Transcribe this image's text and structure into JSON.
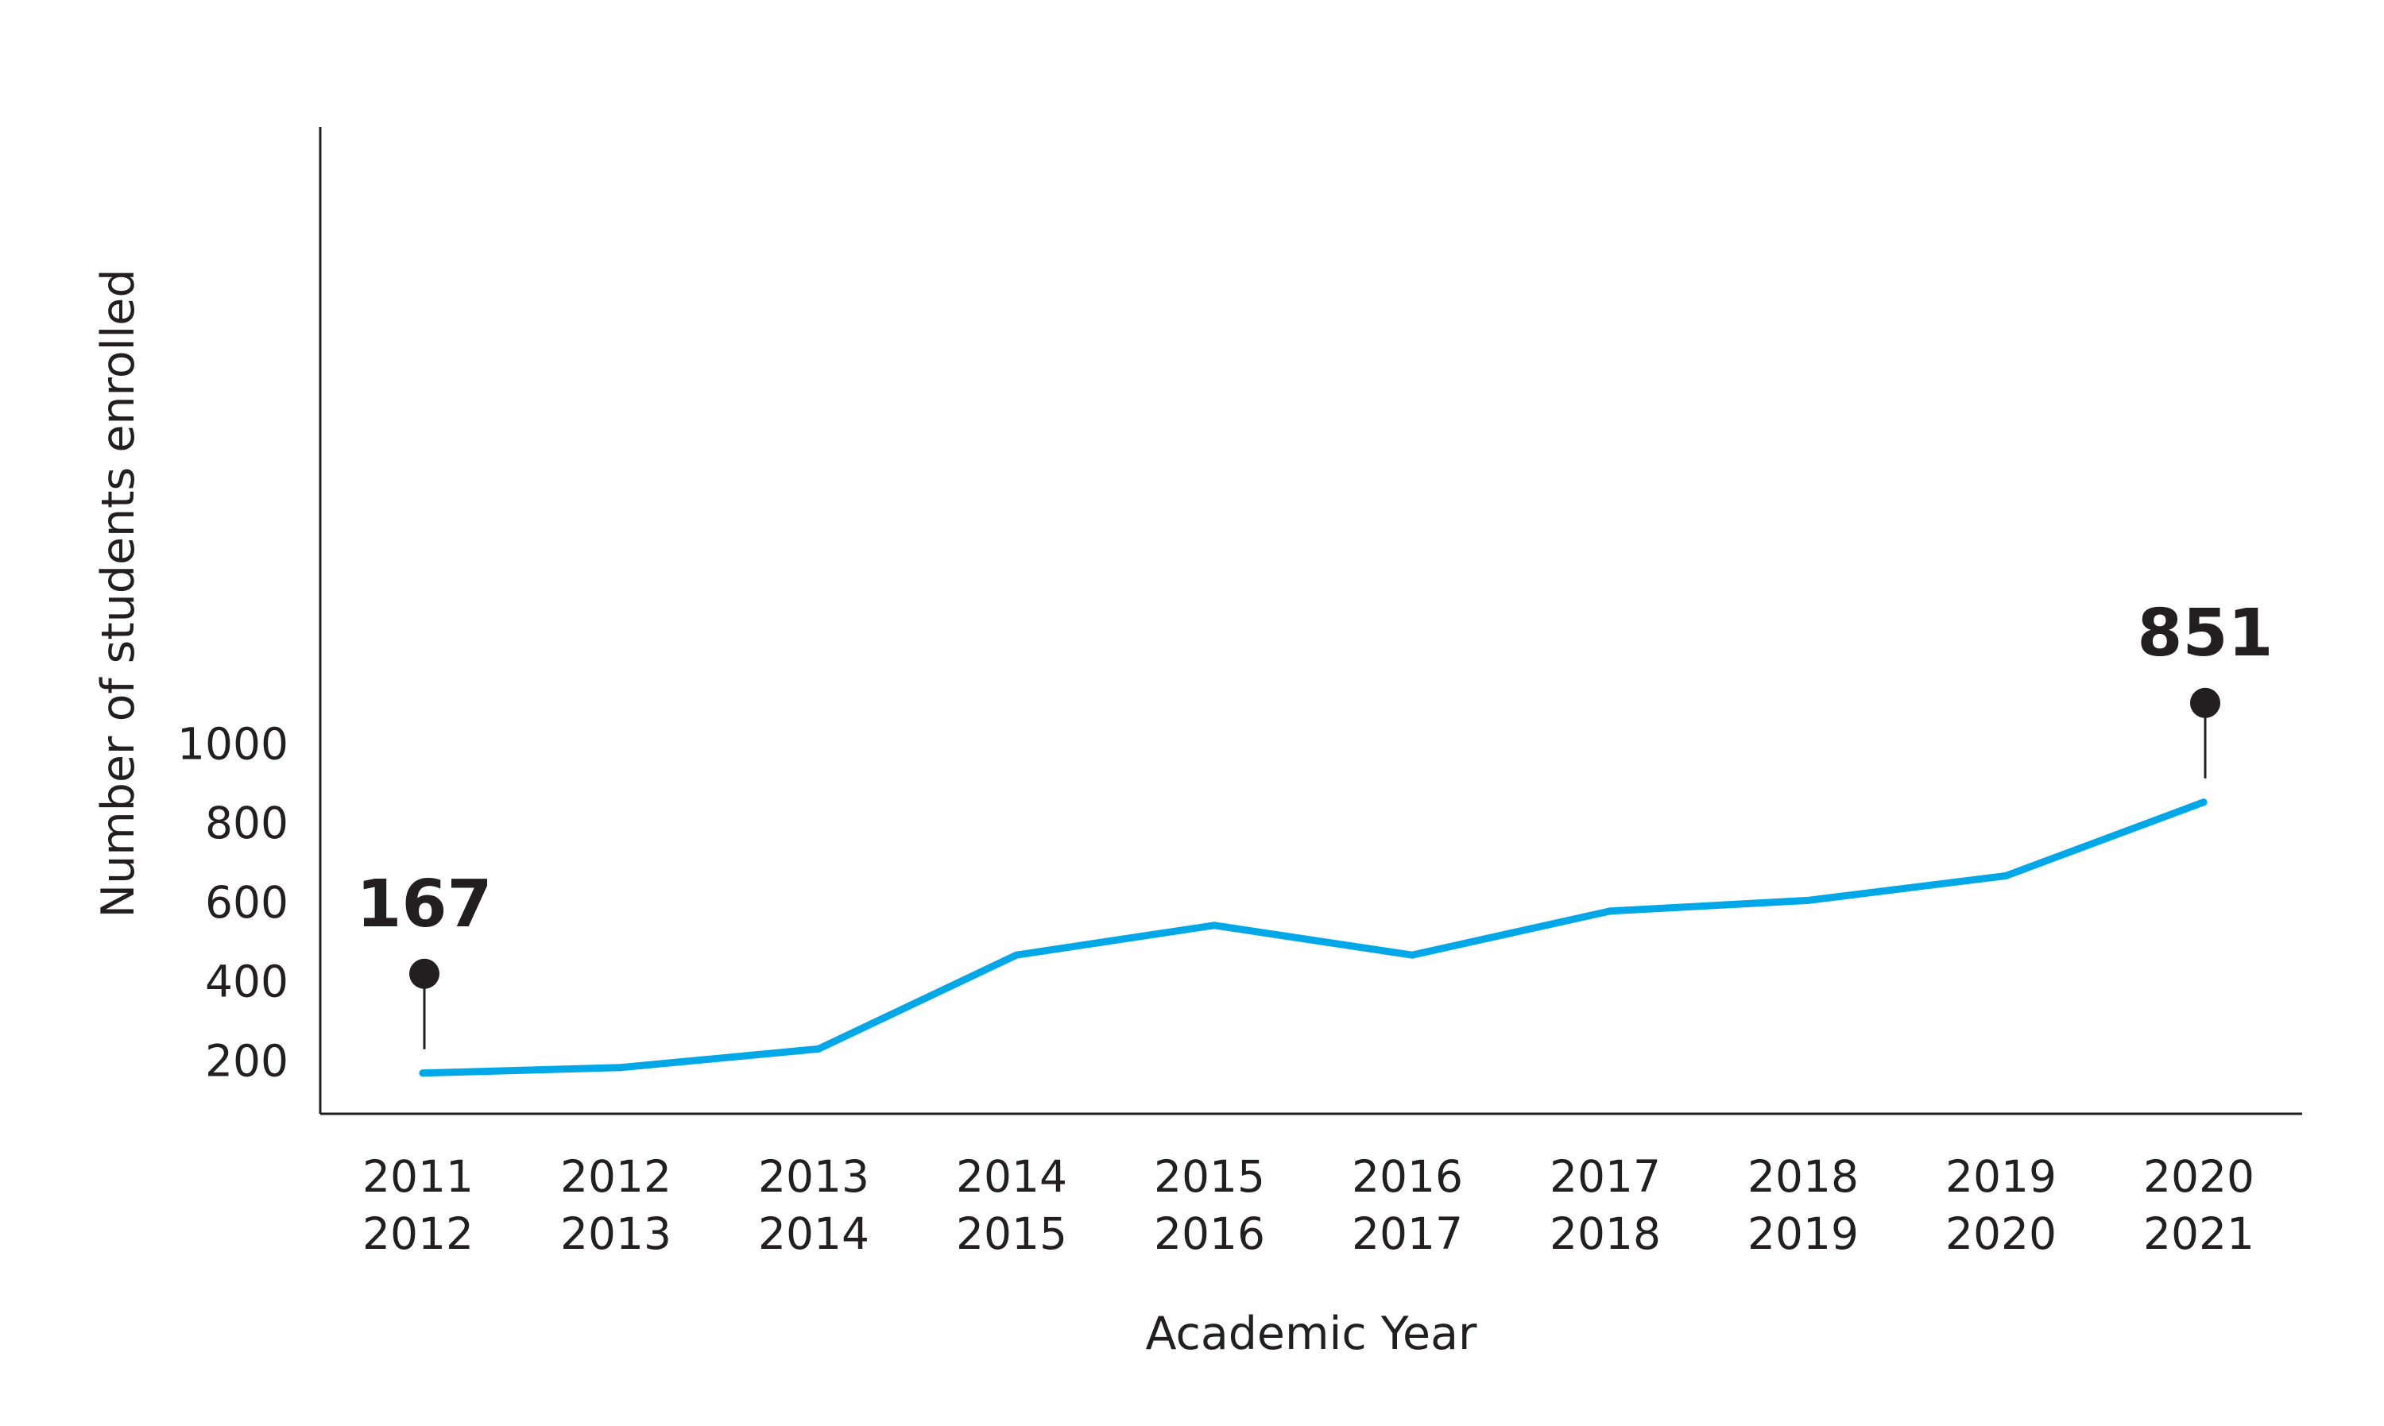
{
  "chart_data": {
    "type": "line",
    "title": "",
    "xlabel": "Academic Year",
    "ylabel": "Number of students enrolled",
    "ylim": [
      0,
      1000
    ],
    "yticks": [
      200,
      400,
      600,
      800,
      1000
    ],
    "grid": false,
    "categories": [
      [
        "2011",
        "2012"
      ],
      [
        "2012",
        "2013"
      ],
      [
        "2013",
        "2014"
      ],
      [
        "2014",
        "2015"
      ],
      [
        "2015",
        "2016"
      ],
      [
        "2016",
        "2017"
      ],
      [
        "2017",
        "2018"
      ],
      [
        "2018",
        "2019"
      ],
      [
        "2019",
        "2020"
      ],
      [
        "2020",
        "2021"
      ]
    ],
    "series": [
      {
        "values": [
          167,
          181,
          228,
          465,
          540,
          465,
          576,
          603,
          665,
          851
        ],
        "color": "#00a8e8"
      }
    ],
    "annotations": [
      {
        "index": 0,
        "label": "167"
      },
      {
        "index": 9,
        "label": "851"
      }
    ]
  }
}
